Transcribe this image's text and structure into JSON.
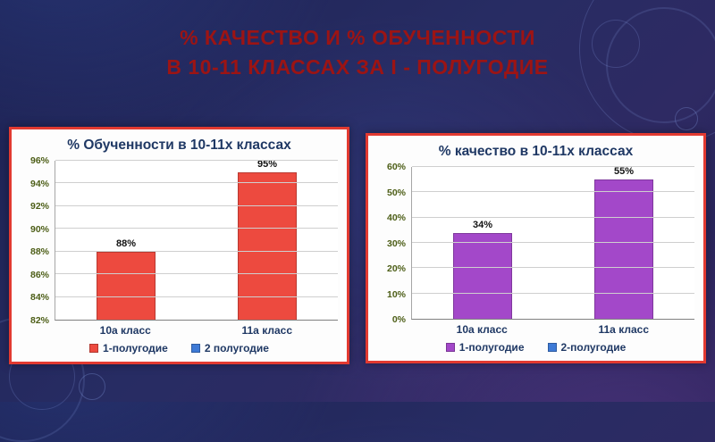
{
  "slide": {
    "title_line1": "% КАЧЕСТВО И % ОБУЧЕННОСТИ",
    "title_line2": "В 10-11 КЛАССАХ ЗА  I - ПОЛУГОДИЕ"
  },
  "colors": {
    "title_red": "#9c1414",
    "panel_border_red": "#e23a31",
    "chart_title_navy": "#1f3864",
    "ytick_olive": "#4d5e17",
    "bar_red": "#ed4a3f",
    "bar_purple": "#a348c9",
    "legend_blue": "#3e7ad6"
  },
  "chart_data": [
    {
      "type": "bar",
      "title": "% Обученности в 10-11х классах",
      "categories": [
        "10а класс",
        "11а класс"
      ],
      "series": [
        {
          "name": "1-полугодие",
          "color": "#ed4a3f",
          "values": [
            88,
            95
          ]
        }
      ],
      "data_labels": [
        "88%",
        "95%"
      ],
      "ylim": [
        82,
        96
      ],
      "ytick_step": 2,
      "ytick_suffix": "%",
      "grid": true,
      "legend_position": "bottom",
      "legend": [
        {
          "label": "1-полугодие",
          "color": "#ed4a3f"
        },
        {
          "label": "2 полугодие",
          "color": "#3e7ad6"
        }
      ]
    },
    {
      "type": "bar",
      "title": "% качество в 10-11х классах",
      "categories": [
        "10а класс",
        "11а класс"
      ],
      "series": [
        {
          "name": "1-полугодие",
          "color": "#a348c9",
          "values": [
            34,
            55
          ]
        }
      ],
      "data_labels": [
        "34%",
        "55%"
      ],
      "ylim": [
        0,
        60
      ],
      "ytick_step": 10,
      "ytick_suffix": "%",
      "grid": true,
      "legend_position": "bottom",
      "legend": [
        {
          "label": "1-полугодие",
          "color": "#a348c9"
        },
        {
          "label": "2-полугодие",
          "color": "#3e7ad6"
        }
      ]
    }
  ]
}
